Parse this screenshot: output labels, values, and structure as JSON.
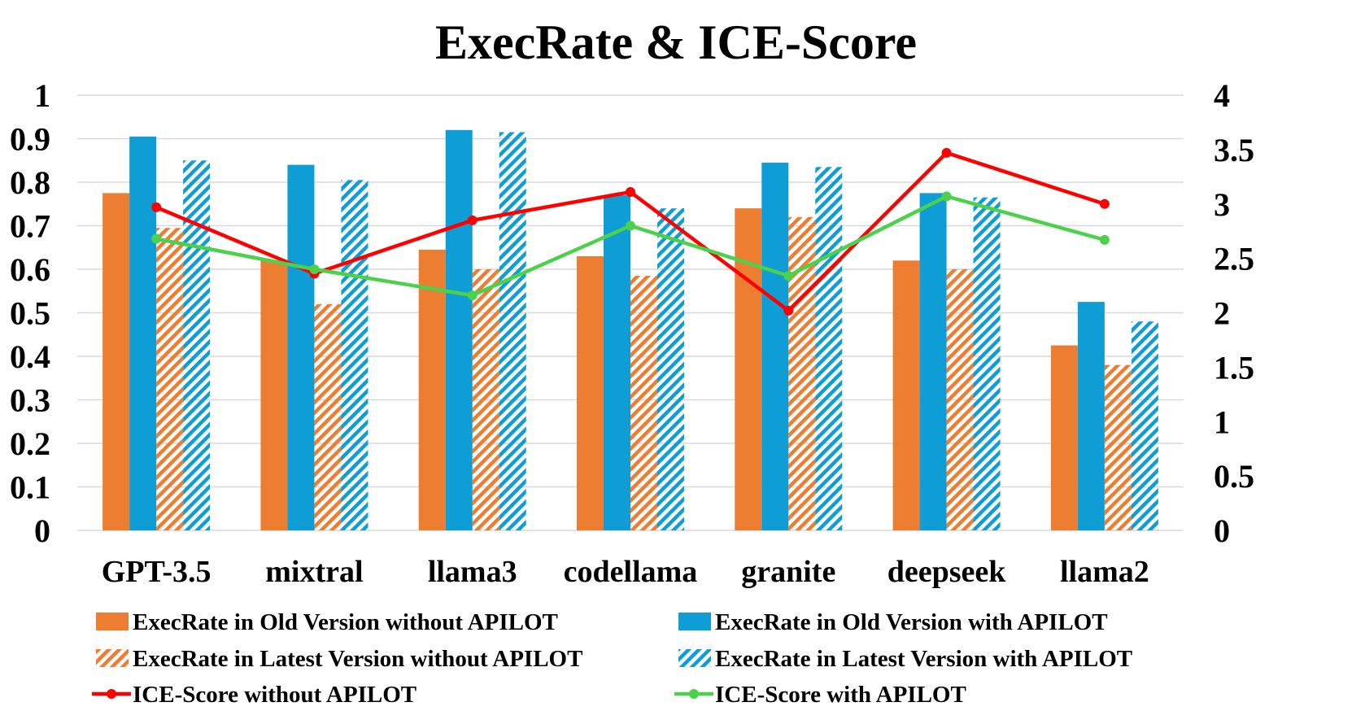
{
  "chart_data": {
    "type": "bar",
    "title": "ExecRate & ICE-Score",
    "categories": [
      "GPT-3.5",
      "mixtral",
      "llama3",
      "codellama",
      "granite",
      "deepseek",
      "llama2"
    ],
    "ylim": [
      0,
      1
    ],
    "y_ticks": [
      "0",
      "0.1",
      "0.2",
      "0.3",
      "0.4",
      "0.5",
      "0.6",
      "0.7",
      "0.8",
      "0.9",
      "1"
    ],
    "y2lim": [
      0,
      4
    ],
    "y2_ticks": [
      "0",
      "0.5",
      "1",
      "1.5",
      "2",
      "2.5",
      "3",
      "3.5",
      "4"
    ],
    "grid": true,
    "legend_position": "bottom",
    "series": [
      {
        "name": "ExecRate in Old Version without APILOT",
        "type": "bar",
        "axis": "left",
        "style": "solid",
        "color": "#ED7D31",
        "values": [
          0.775,
          0.62,
          0.645,
          0.63,
          0.74,
          0.62,
          0.425
        ]
      },
      {
        "name": "ExecRate in Old Version with APILOT",
        "type": "bar",
        "axis": "left",
        "style": "solid",
        "color": "#0E9ED5",
        "values": [
          0.905,
          0.84,
          0.92,
          0.77,
          0.845,
          0.775,
          0.525
        ]
      },
      {
        "name": "ExecRate in Latest Version without APILOT",
        "type": "bar",
        "axis": "left",
        "style": "hatched",
        "color": "#ED7D31",
        "values": [
          0.695,
          0.52,
          0.6,
          0.585,
          0.72,
          0.6,
          0.38
        ]
      },
      {
        "name": "ExecRate in Latest Version with APILOT",
        "type": "bar",
        "axis": "left",
        "style": "hatched",
        "color": "#0E9ED5",
        "values": [
          0.85,
          0.805,
          0.915,
          0.74,
          0.835,
          0.765,
          0.48
        ]
      },
      {
        "name": "ICE-Score without APILOT",
        "type": "line",
        "axis": "right",
        "color": "#FF0000",
        "values": [
          2.97,
          2.36,
          2.85,
          3.11,
          2.02,
          3.47,
          3.0
        ]
      },
      {
        "name": "ICE-Score with APILOT",
        "type": "line",
        "axis": "right",
        "color": "#4CD14C",
        "values": [
          2.68,
          2.4,
          2.16,
          2.8,
          2.34,
          3.07,
          2.67
        ]
      }
    ]
  }
}
